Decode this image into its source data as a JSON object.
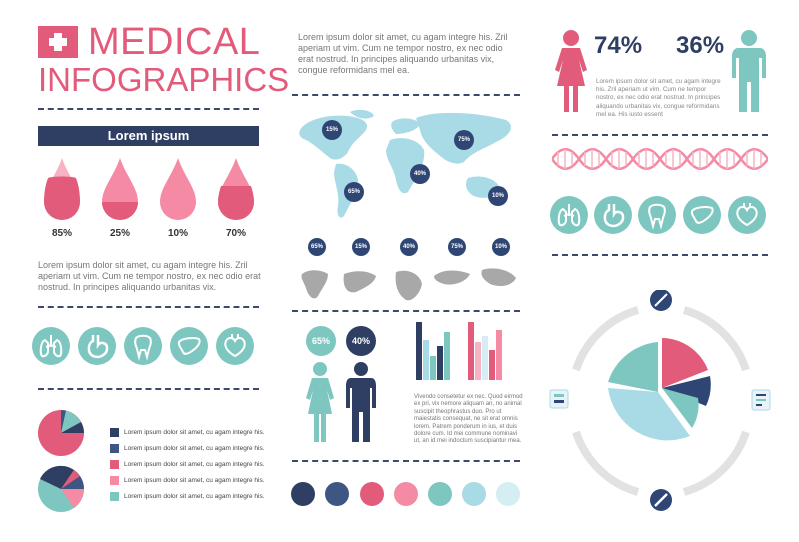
{
  "header": {
    "title_line1": "MEDICAL",
    "title_line2": "INFOGRAPHICS"
  },
  "banner": "Lorem ipsum",
  "drops": [
    {
      "value": "85%"
    },
    {
      "value": "25%"
    },
    {
      "value": "10%"
    },
    {
      "value": "70%"
    }
  ],
  "left_paragraph": "Lorem ipsum dolor sit amet, cu agam integre his. Zril aperiam ut vim. Cum ne tempor nostro, ex nec odio erat nostrud. In principes aliquando urbanitas vix.",
  "top_paragraph": "Lorem ipsum dolor sit amet, cu agam integre his. Zril aperiam ut vim. Cum ne tempor nostro, ex nec odio erat nostrud. In principes aliquando urbanitas vix, congue reformidans mel ea.",
  "map_badges": [
    "15%",
    "75%",
    "65%",
    "40%",
    "10%"
  ],
  "row_badges": [
    "65%",
    "15%",
    "40%",
    "75%",
    "10%"
  ],
  "people_pcts": [
    "65%",
    "40%"
  ],
  "gender_pcts": [
    "74%",
    "36%"
  ],
  "gender_paragraph": "Lorem ipsum dolor sit amet, cu agam integre his. Zril aperiam ut vim. Cum ne tempor nostro, ex nec odio erat nostrud. In principes aliquando urbanitas vix, congue reformidans mel ea. His iusto essent",
  "bars_paragraph": "Vivendo consetetur ex nec. Quod eirmod ex pri, vix nemore aliquam an, no animal suscipit theophrastus duo. Pro ut maiestatis consequat, ne sit erat omnis lorem. Patrem ponderum in ius, et duis dolore cum. Id mei commune nominavi ut, an id mei indoctum suscipiantur mea.",
  "legend": [
    {
      "text": "Lorem ipsum dolor sit amet, cu agam integre his.",
      "color": "#2f3f63"
    },
    {
      "text": "Lorem ipsum dolor sit amet, cu agam integre his.",
      "color": "#3d5683"
    },
    {
      "text": "Lorem ipsum dolor sit amet, cu agam integre his.",
      "color": "#e25b7a"
    },
    {
      "text": "Lorem ipsum dolor sit amet, cu agam integre his.",
      "color": "#f48aa3"
    },
    {
      "text": "Lorem ipsum dolor sit amet, cu agam integre his.",
      "color": "#7ec7c0"
    }
  ],
  "color_swatches": [
    "#2f3f63",
    "#3d5683",
    "#e25b7a",
    "#f48aa3",
    "#7ec7c0",
    "#a9dbe6",
    "#d4eef4"
  ],
  "organ_icons": [
    "lungs-icon",
    "stomach-icon",
    "tooth-icon",
    "liver-icon",
    "heart-icon"
  ],
  "colors": {
    "pink": "#e25b7a",
    "navy": "#2f3f63",
    "teal": "#7ec7c0",
    "lightblue": "#a9dbe6"
  }
}
